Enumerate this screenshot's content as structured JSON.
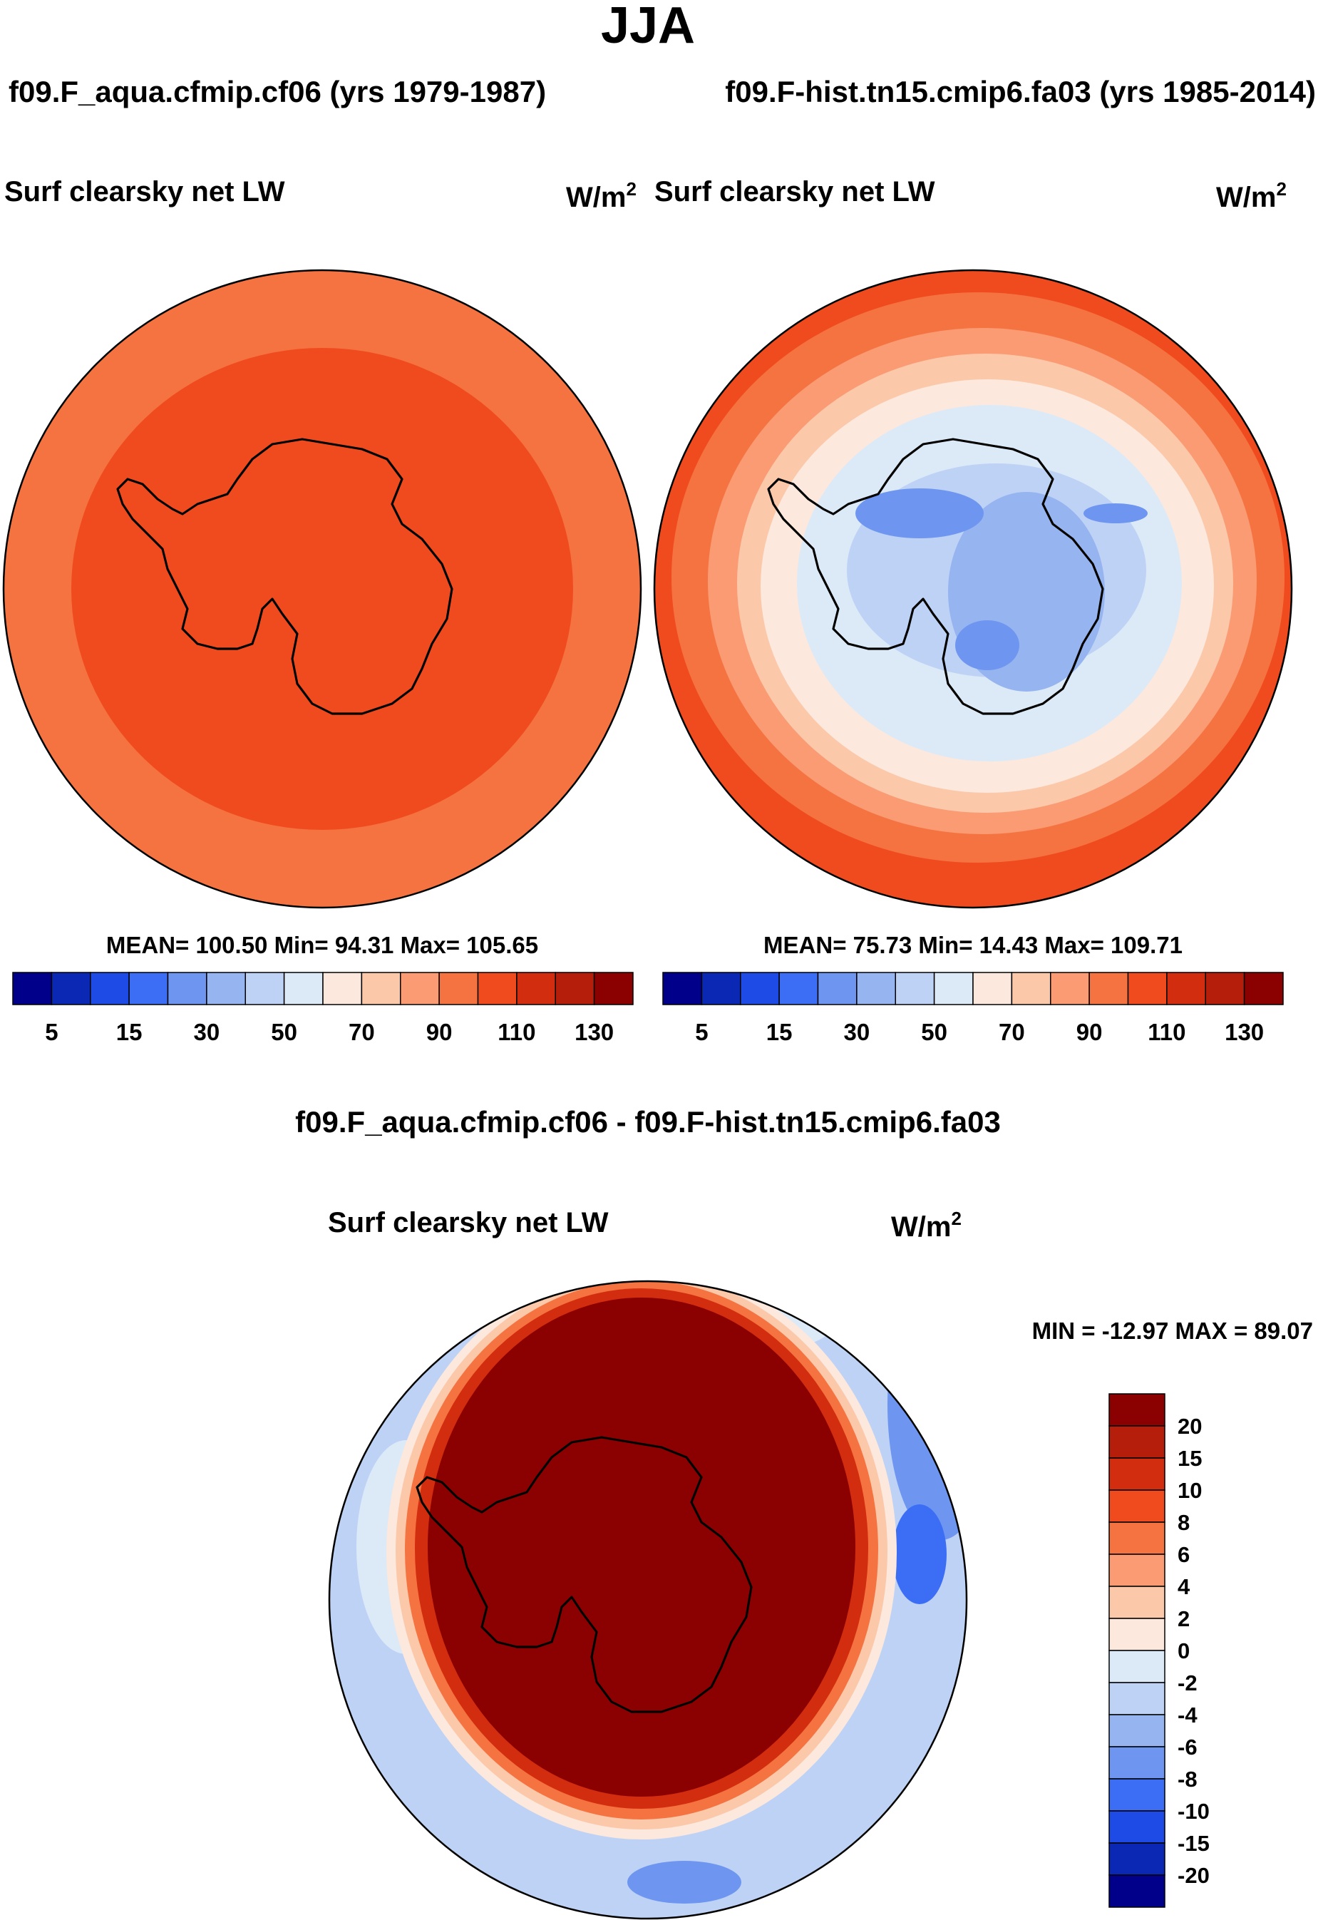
{
  "figure": {
    "title": "JJA",
    "left_case": "f09.F_aqua.cfmip.cf06 (yrs 1979-1987)",
    "right_case": "f09.F-hist.tn15.cmip6.fa03 (yrs 1985-2014)",
    "diff_title": "f09.F_aqua.cfmip.cf06 - f09.F-hist.tn15.cmip6.fa03"
  },
  "panels": {
    "left": {
      "variable": "Surf clearsky net LW",
      "units_base": "W/m",
      "units_exp": "2",
      "stats": "MEAN= 100.50  Min=  94.31  Max= 105.65"
    },
    "right": {
      "variable": "Surf clearsky net LW",
      "units_base": "W/m",
      "units_exp": "2",
      "stats": "MEAN=  75.73  Min=  14.43  Max= 109.71"
    },
    "diff": {
      "variable": "Surf clearsky net LW",
      "units_base": "W/m",
      "units_exp": "2",
      "stats": "MIN = -12.97 MAX =  89.07"
    }
  },
  "colors": {
    "abs_scale": [
      "#00008b",
      "#0a28b4",
      "#1e4be6",
      "#3c6ef5",
      "#6e96f0",
      "#96b4f0",
      "#bed2f5",
      "#dceaf8",
      "#fce8dc",
      "#fcc8aa",
      "#fa9b73",
      "#f57341",
      "#f04b1e",
      "#d22d0f",
      "#b41e0a",
      "#8b0000"
    ],
    "diff_scale": [
      "#8b0000",
      "#b41e0a",
      "#d22d0f",
      "#f04b1e",
      "#f57341",
      "#fa9b73",
      "#fcc8aa",
      "#fce8dc",
      "#dceaf8",
      "#bed2f5",
      "#96b4f0",
      "#6e96f0",
      "#3c6ef5",
      "#1e4be6",
      "#0a28b4",
      "#00008b"
    ]
  },
  "chart_data": [
    {
      "type": "heatmap",
      "title": "Surf clearsky net LW",
      "subtitle": "f09.F_aqua.cfmip.cf06 (yrs 1979-1987)",
      "projection": "south polar stereographic",
      "units": "W/m^2",
      "colorbar_ticks": [
        "5",
        "15",
        "30",
        "50",
        "70",
        "90",
        "110",
        "130"
      ],
      "field": {
        "mean": 100.5,
        "min": 94.31,
        "max": 105.65
      }
    },
    {
      "type": "heatmap",
      "title": "Surf clearsky net LW",
      "subtitle": "f09.F-hist.tn15.cmip6.fa03 (yrs 1985-2014)",
      "projection": "south polar stereographic",
      "units": "W/m^2",
      "colorbar_ticks": [
        "5",
        "15",
        "30",
        "50",
        "70",
        "90",
        "110",
        "130"
      ],
      "field": {
        "mean": 75.73,
        "min": 14.43,
        "max": 109.71
      }
    },
    {
      "type": "heatmap",
      "title": "Surf clearsky net LW",
      "subtitle": "f09.F_aqua.cfmip.cf06 - f09.F-hist.tn15.cmip6.fa03",
      "projection": "south polar stereographic",
      "units": "W/m^2",
      "colorbar_ticks": [
        "20",
        "15",
        "10",
        "8",
        "6",
        "4",
        "2",
        "0",
        "-2",
        "-4",
        "-6",
        "-8",
        "-10",
        "-15",
        "-20"
      ],
      "field": {
        "min": -12.97,
        "max": 89.07
      }
    }
  ]
}
